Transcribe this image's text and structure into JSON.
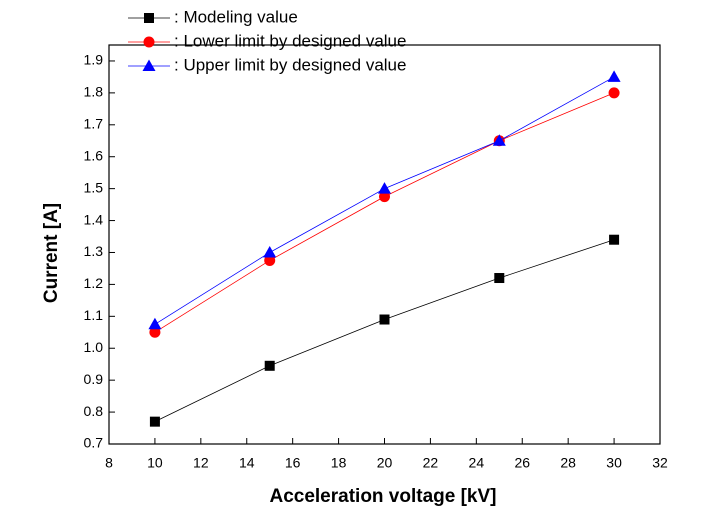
{
  "chart_data": {
    "type": "line",
    "x_label": "Acceleration voltage [kV]",
    "y_label": "Current [A]",
    "x": [
      10,
      15,
      20,
      25,
      30
    ],
    "series": [
      {
        "name": ": Modeling value",
        "color": "#000000",
        "marker": "square",
        "values": [
          0.77,
          0.945,
          1.09,
          1.22,
          1.34
        ]
      },
      {
        "name": ": Lower limit by designed value",
        "color": "#ff0000",
        "marker": "circle",
        "values": [
          1.05,
          1.275,
          1.475,
          1.65,
          1.8
        ]
      },
      {
        "name": ": Upper limit by designed value",
        "color": "#0000ff",
        "marker": "triangle",
        "values": [
          1.075,
          1.3,
          1.5,
          1.65,
          1.85
        ]
      }
    ],
    "xlim": [
      8,
      32
    ],
    "xticks": [
      8,
      10,
      12,
      14,
      16,
      18,
      20,
      22,
      24,
      26,
      28,
      30,
      32
    ],
    "ylim": [
      0.7,
      1.95
    ],
    "yticks": [
      0.7,
      0.8,
      0.9,
      {
        "value": 1,
        "label": "1.0"
      },
      1.1,
      1.2,
      1.3,
      1.4,
      1.5,
      1.6,
      1.7,
      1.8,
      1.9
    ]
  }
}
